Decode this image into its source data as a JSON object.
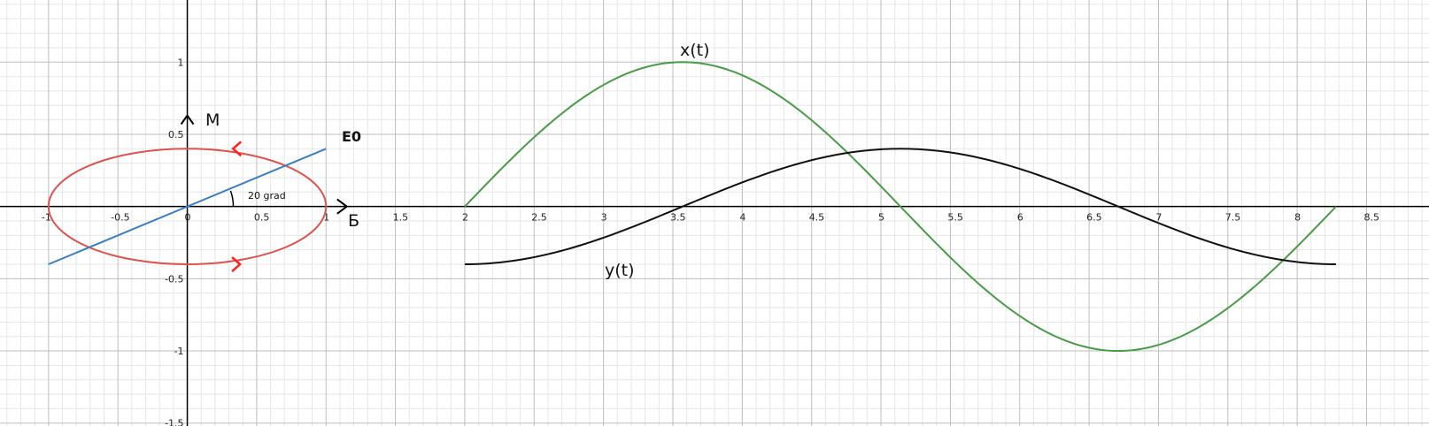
{
  "chart_data": {
    "type": "line",
    "title": "",
    "xlabel": "Б",
    "ylabel": "M",
    "xlim": [
      -1.35,
      8.95
    ],
    "ylim": [
      -1.52,
      1.43
    ],
    "grid": true,
    "x_ticks": [
      "-1",
      "-0.5",
      "0",
      "0.5",
      "1",
      "1.5",
      "2",
      "2.5",
      "3",
      "3.5",
      "4",
      "4.5",
      "5",
      "5.5",
      "6",
      "6.5",
      "7",
      "7.5",
      "8",
      "8.5"
    ],
    "y_ticks": [
      "1",
      "0.5",
      "-0.5",
      "-1",
      "-1.5"
    ],
    "colors": {
      "ellipse": "#d9534f",
      "arrow": "#ff2020",
      "line": "#3a7ebf",
      "x_curve": "#4a9a4a",
      "y_curve": "#111111",
      "grid_major": "#bdbdbd",
      "grid_minor": "#e6e6e6",
      "axis": "#000000"
    },
    "series": [
      {
        "name": "x(t)",
        "color": "#4a9a4a",
        "x": [
          2.0,
          2.5,
          3.0,
          3.5,
          3.57,
          4.0,
          4.5,
          5.0,
          5.5,
          6.0,
          6.5,
          6.71,
          7.0,
          7.5,
          8.0,
          8.28
        ],
        "y": [
          0.0,
          0.483,
          0.842,
          0.998,
          1.0,
          0.909,
          0.598,
          0.141,
          -0.351,
          -0.757,
          -0.978,
          -1.0,
          -0.959,
          -0.706,
          -0.279,
          0.0
        ]
      },
      {
        "name": "y(t)",
        "color": "#111111",
        "x": [
          2.0,
          2.5,
          3.0,
          3.5,
          3.57,
          4.0,
          4.5,
          5.0,
          5.14,
          5.5,
          6.0,
          6.5,
          6.71,
          7.0,
          7.5,
          8.0,
          8.28
        ],
        "y": [
          -0.4,
          -0.336,
          -0.216,
          -0.028,
          0.0,
          0.166,
          0.319,
          0.396,
          0.4,
          0.374,
          0.261,
          0.085,
          0.0,
          -0.115,
          -0.284,
          -0.388,
          -0.4
        ]
      }
    ],
    "ellipse": {
      "cx": 0,
      "cy": 0,
      "rx": 1.0,
      "ry": 0.4
    },
    "e0_line": {
      "x": [
        -1.0,
        1.0
      ],
      "y": [
        -0.4,
        0.4
      ],
      "label": "E0"
    },
    "angle_label": "20 grad",
    "axis_labels": {
      "x": "Б",
      "y": "M"
    },
    "curve_labels": {
      "x_curve": "x(t)",
      "y_curve": "y(t)"
    }
  }
}
